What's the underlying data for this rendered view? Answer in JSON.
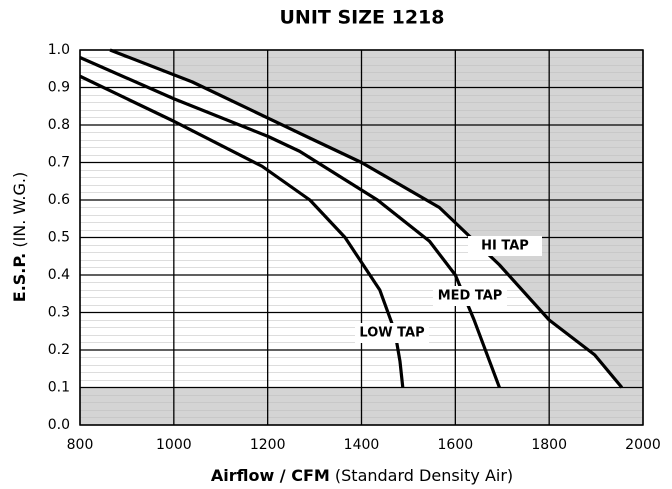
{
  "chart_data": {
    "type": "line",
    "title": "UNIT SIZE 1218",
    "x_label_main": "Airflow / CFM",
    "x_label_note": "(Standard Density Air)",
    "y_label_main": "E.S.P.",
    "y_label_note": "(IN. W.G.)",
    "xlim": [
      800,
      2000
    ],
    "xticks": [
      800,
      1000,
      1200,
      1400,
      1600,
      1800,
      2000
    ],
    "ylim": [
      0,
      1
    ],
    "yticks": [
      {
        "value": 0,
        "label": "0.0"
      },
      0.1,
      0.2,
      0.3,
      0.4,
      0.5,
      0.6,
      0.7,
      0.8,
      0.9,
      {
        "value": 1,
        "label": "1.0"
      }
    ],
    "grid": true,
    "series": [
      {
        "name": "HI TAP",
        "color": "#000000",
        "x": [
          864,
          1039,
          1290,
          1400,
          1566,
          1694,
          1800,
          1897,
          1955
        ],
        "values": [
          1.0,
          0.915,
          0.765,
          0.7,
          0.58,
          0.427,
          0.28,
          0.187,
          0.1
        ]
      },
      {
        "name": "MED TAP",
        "color": "#000000",
        "x": [
          800,
          1000,
          1200,
          1268,
          1434,
          1545,
          1600,
          1640,
          1694
        ],
        "values": [
          0.98,
          0.87,
          0.77,
          0.73,
          0.6,
          0.49,
          0.4,
          0.28,
          0.1
        ]
      },
      {
        "name": "LOW TAP",
        "color": "#000000",
        "x": [
          800,
          1000,
          1188,
          1290,
          1365,
          1439,
          1471,
          1482,
          1488
        ],
        "values": [
          0.93,
          0.81,
          0.69,
          0.6,
          0.5,
          0.36,
          0.25,
          0.17,
          0.1
        ]
      }
    ]
  }
}
